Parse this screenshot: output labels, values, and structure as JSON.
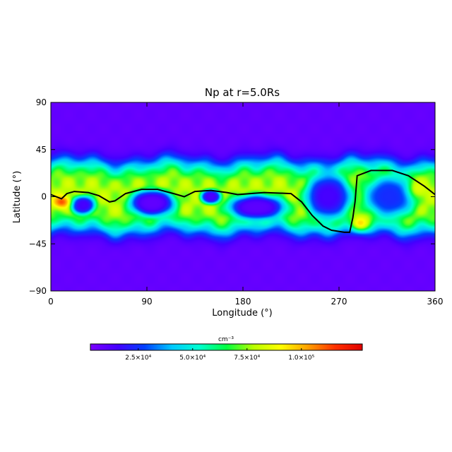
{
  "chart_data": {
    "type": "heatmap",
    "title": "Np at r=5.0Rs",
    "xlabel": "Longitude (°)",
    "ylabel": "Latitude (°)",
    "xlim": [
      0,
      360
    ],
    "ylim": [
      -90,
      90
    ],
    "xticks": [
      "0",
      "90",
      "180",
      "270",
      "360"
    ],
    "yticks": [
      "90",
      "45",
      "0",
      "−45",
      "−90"
    ],
    "colorbar": {
      "label": "cm⁻³",
      "ticks": [
        {
          "value": 25000,
          "label": "2.5×10⁴"
        },
        {
          "value": 50000,
          "label": "5.0×10⁴"
        },
        {
          "value": 75000,
          "label": "7.5×10⁴"
        },
        {
          "value": 100000,
          "label": "1.0×10⁵"
        }
      ],
      "range": [
        3000,
        128000
      ],
      "colors": [
        "#7a00ff",
        "#4400ff",
        "#0040ff",
        "#00c8ff",
        "#00ffd0",
        "#00ff40",
        "#b8ff00",
        "#ffff00",
        "#ffa000",
        "#ff3000",
        "#e00000"
      ]
    },
    "background_density": 8000,
    "band": {
      "center_lat": 0,
      "peak_density": 78000,
      "half_width_deg": 35
    },
    "depletions": [
      {
        "lon": 30,
        "lat": -8,
        "r_lon": 12,
        "r_lat": 9,
        "min_density": 15000
      },
      {
        "lon": 95,
        "lat": -6,
        "r_lon": 22,
        "r_lat": 13,
        "min_density": 9000
      },
      {
        "lon": 150,
        "lat": 0,
        "r_lon": 10,
        "r_lat": 7,
        "min_density": 14000
      },
      {
        "lon": 193,
        "lat": -10,
        "r_lon": 28,
        "r_lat": 12,
        "min_density": 10000
      },
      {
        "lon": 260,
        "lat": 0,
        "r_lon": 22,
        "r_lat": 22,
        "min_density": 15000
      },
      {
        "lon": 318,
        "lat": 0,
        "r_lon": 25,
        "r_lat": 20,
        "min_density": 24000
      }
    ],
    "enhancements": [
      {
        "lon": 10,
        "lat": -5,
        "r_lon": 8,
        "r_lat": 6,
        "peak_density": 112000
      },
      {
        "lon": 290,
        "lat": -25,
        "r_lon": 10,
        "r_lat": 8,
        "peak_density": 95000
      },
      {
        "lon": 345,
        "lat": 8,
        "r_lon": 10,
        "r_lat": 10,
        "peak_density": 85000
      }
    ],
    "contour": [
      [
        0,
        2
      ],
      [
        5,
        0
      ],
      [
        10,
        -2
      ],
      [
        15,
        3
      ],
      [
        22,
        5
      ],
      [
        35,
        4
      ],
      [
        45,
        1
      ],
      [
        55,
        -5
      ],
      [
        60,
        -4
      ],
      [
        70,
        3
      ],
      [
        85,
        7
      ],
      [
        100,
        7
      ],
      [
        115,
        3
      ],
      [
        125,
        0
      ],
      [
        135,
        5
      ],
      [
        150,
        6
      ],
      [
        165,
        4
      ],
      [
        175,
        2
      ],
      [
        200,
        4
      ],
      [
        225,
        3
      ],
      [
        235,
        -5
      ],
      [
        245,
        -18
      ],
      [
        255,
        -28
      ],
      [
        263,
        -32
      ],
      [
        275,
        -34
      ],
      [
        280,
        -34
      ],
      [
        283,
        -20
      ],
      [
        285,
        -5
      ],
      [
        287,
        20
      ],
      [
        300,
        25
      ],
      [
        320,
        25
      ],
      [
        335,
        20
      ],
      [
        350,
        10
      ],
      [
        360,
        2
      ]
    ]
  }
}
